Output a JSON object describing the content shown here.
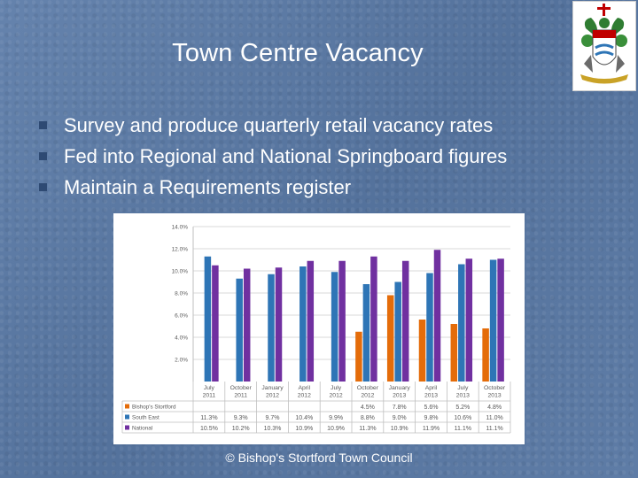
{
  "slide": {
    "title": "Town Centre Vacancy",
    "bullets": [
      "Survey and produce quarterly  retail vacancy rates",
      "Fed into Regional and National Springboard figures",
      "Maintain a Requirements register"
    ],
    "footer": "© Bishop's Stortford Town Council",
    "crest_icon": "coat-of-arms-icon"
  },
  "colors": {
    "bishops_stortford": "#e46c0a",
    "south_east": "#2e75b6",
    "national": "#7030a0",
    "background": "#5b7aa6"
  },
  "chart_data": {
    "type": "bar",
    "categories": [
      [
        "July",
        "2011"
      ],
      [
        "October",
        "2011"
      ],
      [
        "January",
        "2012"
      ],
      [
        "April",
        "2012"
      ],
      [
        "July",
        "2012"
      ],
      [
        "October",
        "2012"
      ],
      [
        "January",
        "2013"
      ],
      [
        "April",
        "2013"
      ],
      [
        "July",
        "2013"
      ],
      [
        "October",
        "2013"
      ]
    ],
    "ylim": [
      0,
      14
    ],
    "yticks": [
      "",
      "2.0%",
      "4.0%",
      "6.0%",
      "8.0%",
      "10.0%",
      "12.0%",
      "14.0%"
    ],
    "grid": true,
    "legend": "data-table",
    "series": [
      {
        "name": "Bishop's Stortford",
        "values": [
          null,
          null,
          null,
          null,
          null,
          4.5,
          7.8,
          5.6,
          5.2,
          4.8
        ],
        "labels": [
          "",
          "",
          "",
          "",
          "",
          "4.5%",
          "7.8%",
          "5.6%",
          "5.2%",
          "4.8%"
        ]
      },
      {
        "name": "South East",
        "values": [
          11.3,
          9.3,
          9.7,
          10.4,
          9.9,
          8.8,
          9.0,
          9.8,
          10.6,
          11.0
        ],
        "labels": [
          "11.3%",
          "9.3%",
          "9.7%",
          "10.4%",
          "9.9%",
          "8.8%",
          "9.0%",
          "9.8%",
          "10.6%",
          "11.0%"
        ]
      },
      {
        "name": "National",
        "values": [
          10.5,
          10.2,
          10.3,
          10.9,
          10.9,
          11.3,
          10.9,
          11.9,
          11.1,
          11.1
        ],
        "labels": [
          "10.5%",
          "10.2%",
          "10.3%",
          "10.9%",
          "10.9%",
          "11.3%",
          "10.9%",
          "11.9%",
          "11.1%",
          "11.1%"
        ]
      }
    ]
  }
}
